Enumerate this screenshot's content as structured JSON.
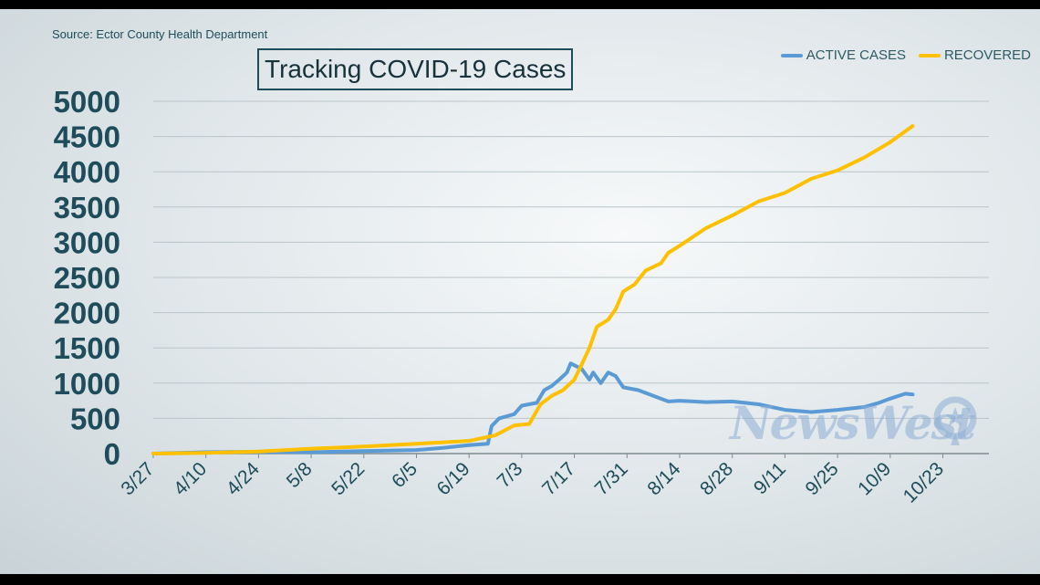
{
  "source": "Source: Ector County Health Department",
  "colors": {
    "active": "#5b9bd5",
    "recovered": "#ffc000",
    "axis_text": "#1e4c5a",
    "grid": "#bac5c9"
  },
  "watermark": {
    "text": "NewsWest",
    "badge_number": "9"
  },
  "chart_data": {
    "type": "line",
    "title": "Tracking COVID-19 Cases",
    "xlabel": "",
    "ylabel": "",
    "ylim": [
      0,
      5000
    ],
    "yticks": [
      "0",
      "500",
      "1000",
      "1500",
      "2000",
      "2500",
      "3000",
      "3500",
      "4000",
      "4500",
      "5000"
    ],
    "xtick_labels": [
      "3/27",
      "4/10",
      "4/24",
      "5/8",
      "5/22",
      "6/5",
      "6/19",
      "7/3",
      "7/17",
      "7/31",
      "8/14",
      "8/28",
      "9/11",
      "9/25",
      "10/9",
      "10/23"
    ],
    "grid": true,
    "legend_position": "top-right",
    "series": [
      {
        "name": "ACTIVE CASES",
        "points": [
          [
            "3/27",
            0
          ],
          [
            "4/10",
            20
          ],
          [
            "4/24",
            25
          ],
          [
            "5/8",
            20
          ],
          [
            "5/22",
            35
          ],
          [
            "6/5",
            50
          ],
          [
            "6/12",
            80
          ],
          [
            "6/19",
            120
          ],
          [
            "6/24",
            140
          ],
          [
            "6/25",
            390
          ],
          [
            "6/27",
            500
          ],
          [
            "7/1",
            560
          ],
          [
            "7/3",
            680
          ],
          [
            "7/7",
            720
          ],
          [
            "7/9",
            900
          ],
          [
            "7/11",
            960
          ],
          [
            "7/13",
            1050
          ],
          [
            "7/15",
            1150
          ],
          [
            "7/16",
            1280
          ],
          [
            "7/19",
            1200
          ],
          [
            "7/21",
            1050
          ],
          [
            "7/22",
            1150
          ],
          [
            "7/24",
            1000
          ],
          [
            "7/26",
            1150
          ],
          [
            "7/28",
            1100
          ],
          [
            "7/30",
            940
          ],
          [
            "8/3",
            900
          ],
          [
            "8/7",
            820
          ],
          [
            "8/11",
            740
          ],
          [
            "8/14",
            750
          ],
          [
            "8/21",
            730
          ],
          [
            "8/28",
            740
          ],
          [
            "9/4",
            700
          ],
          [
            "9/11",
            620
          ],
          [
            "9/18",
            590
          ],
          [
            "9/25",
            620
          ],
          [
            "10/2",
            660
          ],
          [
            "10/6",
            720
          ],
          [
            "10/9",
            780
          ],
          [
            "10/13",
            850
          ],
          [
            "10/15",
            840
          ]
        ]
      },
      {
        "name": "RECOVERED",
        "points": [
          [
            "3/27",
            0
          ],
          [
            "4/10",
            10
          ],
          [
            "4/24",
            30
          ],
          [
            "5/8",
            70
          ],
          [
            "5/22",
            100
          ],
          [
            "6/5",
            140
          ],
          [
            "6/19",
            180
          ],
          [
            "6/26",
            260
          ],
          [
            "7/1",
            400
          ],
          [
            "7/5",
            420
          ],
          [
            "7/8",
            700
          ],
          [
            "7/11",
            820
          ],
          [
            "7/14",
            900
          ],
          [
            "7/17",
            1050
          ],
          [
            "7/19",
            1270
          ],
          [
            "7/21",
            1500
          ],
          [
            "7/23",
            1800
          ],
          [
            "7/26",
            1900
          ],
          [
            "7/28",
            2050
          ],
          [
            "7/30",
            2300
          ],
          [
            "8/2",
            2400
          ],
          [
            "8/5",
            2600
          ],
          [
            "8/9",
            2700
          ],
          [
            "8/11",
            2850
          ],
          [
            "8/14",
            2950
          ],
          [
            "8/21",
            3200
          ],
          [
            "8/28",
            3380
          ],
          [
            "9/4",
            3580
          ],
          [
            "9/11",
            3700
          ],
          [
            "9/18",
            3900
          ],
          [
            "9/25",
            4020
          ],
          [
            "10/2",
            4200
          ],
          [
            "10/9",
            4420
          ],
          [
            "10/15",
            4650
          ]
        ]
      }
    ]
  }
}
